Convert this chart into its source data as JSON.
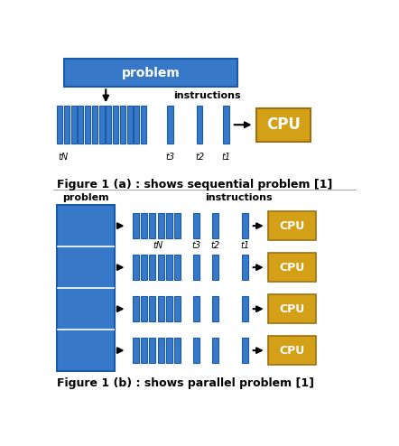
{
  "bg_color": "#ffffff",
  "blue": "#3878C8",
  "orange": "#D4A017",
  "border_blue": "#1a5aaa",
  "border_orange": "#a07010",
  "fig_width": 4.42,
  "fig_height": 4.94,
  "dpi": 100,
  "caption_a": "Figure 1 (a) : shows sequential problem [1]",
  "caption_b": "Figure 1 (b) : shows parallel problem [1]",
  "problem_label": "problem",
  "instructions_label": "instructions",
  "cpu_label": "CPU",
  "tN_label": "tN",
  "t3_label": "t3",
  "t2_label": "t2",
  "t1_label": "t1"
}
